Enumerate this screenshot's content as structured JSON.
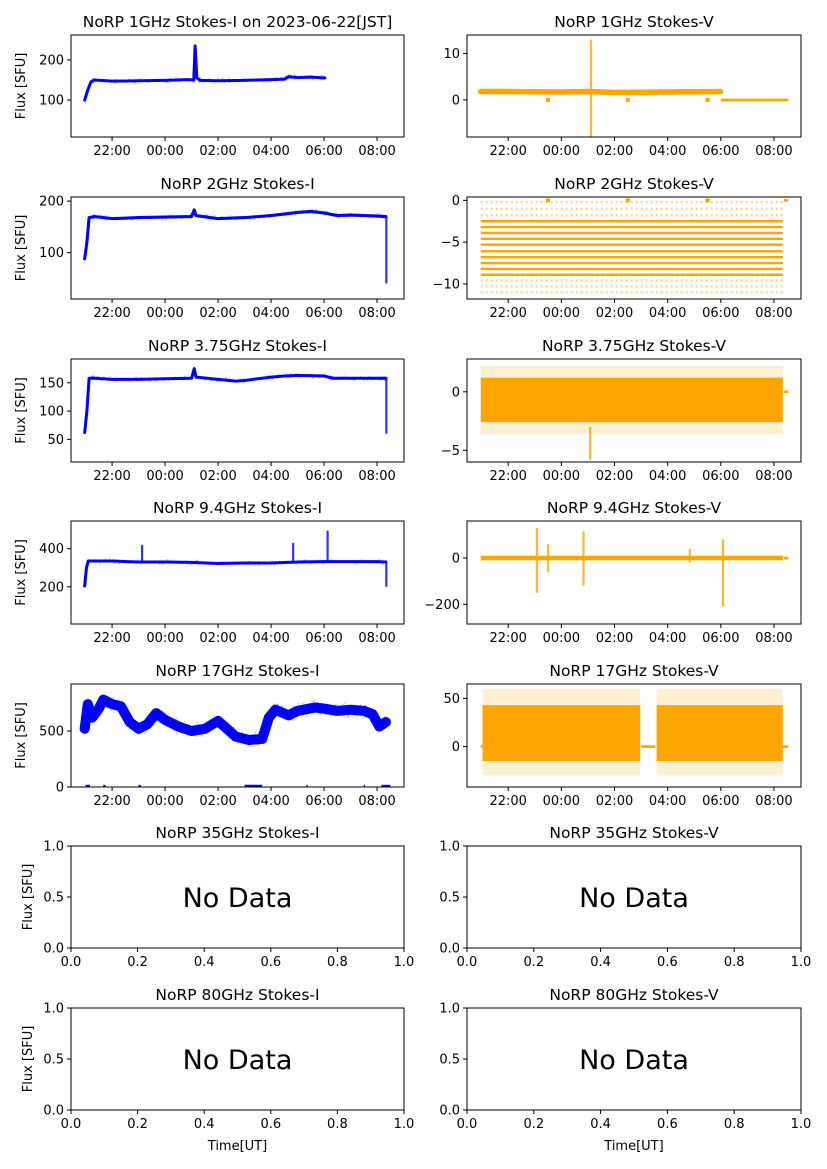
{
  "figure": {
    "ylabel": "Flux [SFU]",
    "xlabel": "Time[UT]",
    "colors": {
      "stokes_i": "#0000ff",
      "stokes_v": "#ffa500",
      "axis": "#000000"
    }
  },
  "chart_data": [
    {
      "id": "1ghz-i",
      "type": "scatter",
      "row": 0,
      "col": 0,
      "title": "NoRP 1GHz Stokes-I on 2023-06-22[JST]",
      "ylabel": "Flux [SFU]",
      "xlabel": "",
      "xlim": [
        "20:27",
        "09:01"
      ],
      "ylim": [
        8,
        262
      ],
      "xticks": [
        "22:00",
        "00:00",
        "02:00",
        "04:00",
        "06:00",
        "08:00"
      ],
      "yticks": [
        100,
        200
      ],
      "series": [
        {
          "name": "Stokes-I",
          "color": "#0000ff",
          "points": [
            [
              "20:58",
              100
            ],
            [
              "21:05",
              125
            ],
            [
              "21:12",
              145
            ],
            [
              "21:20",
              150
            ],
            [
              "22:00",
              147
            ],
            [
              "23:00",
              148
            ],
            [
              "00:00",
              149
            ],
            [
              "00:50",
              151
            ],
            [
              "01:05",
              150
            ],
            [
              "01:08",
              235
            ],
            [
              "01:12",
              155
            ],
            [
              "01:20",
              149
            ],
            [
              "02:00",
              148
            ],
            [
              "03:00",
              149
            ],
            [
              "04:00",
              151
            ],
            [
              "04:30",
              152
            ],
            [
              "04:40",
              158
            ],
            [
              "05:00",
              156
            ],
            [
              "05:30",
              157
            ],
            [
              "06:02",
              155
            ]
          ],
          "band": 4
        }
      ]
    },
    {
      "id": "1ghz-v",
      "type": "scatter",
      "row": 0,
      "col": 1,
      "title": "NoRP 1GHz Stokes-V",
      "ylabel": "",
      "xlabel": "",
      "xlim": [
        "20:27",
        "09:01"
      ],
      "ylim": [
        -8,
        14
      ],
      "xticks": [
        "22:00",
        "00:00",
        "02:00",
        "04:00",
        "06:00",
        "08:00"
      ],
      "yticks": [
        0,
        10
      ],
      "series": [
        {
          "name": "Stokes-V",
          "color": "#ffa500",
          "points": [
            [
              "20:58",
              1.8
            ],
            [
              "22:00",
              1.8
            ],
            [
              "00:00",
              1.7
            ],
            [
              "01:05",
              1.8
            ],
            [
              "02:00",
              1.6
            ],
            [
              "04:00",
              1.7
            ],
            [
              "05:59",
              1.8
            ]
          ],
          "band": 1.2,
          "spikes": [
            [
              "01:07",
              -8,
              13
            ]
          ],
          "flat": [
            [
              "06:00",
              "08:32",
              0
            ]
          ],
          "dots": [
            [
              "23:30",
              0
            ],
            [
              "02:30",
              0
            ],
            [
              "05:30",
              0
            ]
          ]
        }
      ]
    },
    {
      "id": "2ghz-i",
      "type": "scatter",
      "row": 1,
      "col": 0,
      "title": "NoRP 2GHz Stokes-I",
      "ylabel": "Flux [SFU]",
      "xlabel": "",
      "xlim": [
        "20:27",
        "09:01"
      ],
      "ylim": [
        10,
        208
      ],
      "xticks": [
        "22:00",
        "00:00",
        "02:00",
        "04:00",
        "06:00",
        "08:00"
      ],
      "yticks": [
        100,
        200
      ],
      "series": [
        {
          "name": "Stokes-I",
          "color": "#0000ff",
          "points": [
            [
              "20:58",
              88
            ],
            [
              "21:03",
              120
            ],
            [
              "21:08",
              168
            ],
            [
              "21:20",
              170
            ],
            [
              "22:00",
              166
            ],
            [
              "23:00",
              168
            ],
            [
              "00:00",
              169
            ],
            [
              "01:00",
              170
            ],
            [
              "01:06",
              183
            ],
            [
              "01:10",
              172
            ],
            [
              "02:00",
              166
            ],
            [
              "03:00",
              168
            ],
            [
              "04:00",
              172
            ],
            [
              "05:00",
              178
            ],
            [
              "05:30",
              180
            ],
            [
              "06:00",
              177
            ],
            [
              "06:30",
              172
            ],
            [
              "07:00",
              173
            ],
            [
              "08:00",
              171
            ],
            [
              "08:20",
              170
            ]
          ],
          "band": 6,
          "spikes": [
            [
              "08:21",
              40,
              170
            ]
          ]
        }
      ]
    },
    {
      "id": "2ghz-v",
      "type": "scatter",
      "row": 1,
      "col": 1,
      "title": "NoRP 2GHz Stokes-V",
      "ylabel": "",
      "xlabel": "",
      "xlim": [
        "20:27",
        "09:01"
      ],
      "ylim": [
        -11.8,
        0.4
      ],
      "xticks": [
        "22:00",
        "00:00",
        "02:00",
        "04:00",
        "06:00",
        "08:00"
      ],
      "yticks": [
        -10,
        -5,
        0
      ],
      "series": [
        {
          "name": "Stokes-V",
          "color": "#ffa500",
          "levels": [
            -0.2,
            -1.0,
            -1.8,
            -2.5,
            -3.2,
            -3.9,
            -4.6,
            -5.3,
            -6.1,
            -6.8,
            -7.5,
            -8.2,
            -8.9,
            -9.6,
            -10.3,
            -11.0
          ],
          "level_span": [
            "20:58",
            "08:20"
          ],
          "flat": [
            [
              "08:22",
              "08:32",
              0
            ]
          ],
          "dots": [
            [
              "23:30",
              0
            ],
            [
              "02:30",
              0
            ],
            [
              "05:30",
              0
            ]
          ]
        }
      ]
    },
    {
      "id": "375ghz-i",
      "type": "scatter",
      "row": 2,
      "col": 0,
      "title": "NoRP 3.75GHz Stokes-I",
      "ylabel": "Flux [SFU]",
      "xlabel": "",
      "xlim": [
        "20:27",
        "09:01"
      ],
      "ylim": [
        10,
        192
      ],
      "xticks": [
        "22:00",
        "00:00",
        "02:00",
        "04:00",
        "06:00",
        "08:00"
      ],
      "yticks": [
        50,
        100,
        150
      ],
      "series": [
        {
          "name": "Stokes-I",
          "color": "#0000ff",
          "points": [
            [
              "20:58",
              62
            ],
            [
              "21:03",
              100
            ],
            [
              "21:08",
              158
            ],
            [
              "21:20",
              158
            ],
            [
              "22:00",
              156
            ],
            [
              "23:00",
              156
            ],
            [
              "00:00",
              157
            ],
            [
              "01:00",
              158
            ],
            [
              "01:06",
              175
            ],
            [
              "01:10",
              160
            ],
            [
              "02:00",
              156
            ],
            [
              "02:40",
              153
            ],
            [
              "03:00",
              154
            ],
            [
              "04:00",
              160
            ],
            [
              "04:30",
              162
            ],
            [
              "05:00",
              163
            ],
            [
              "06:00",
              162
            ],
            [
              "06:20",
              158
            ],
            [
              "07:00",
              158
            ],
            [
              "08:00",
              158
            ],
            [
              "08:20",
              158
            ]
          ],
          "band": 5,
          "spikes": [
            [
              "08:21",
              60,
              160
            ]
          ]
        }
      ]
    },
    {
      "id": "375ghz-v",
      "type": "scatter",
      "row": 2,
      "col": 1,
      "title": "NoRP 3.75GHz Stokes-V",
      "ylabel": "",
      "xlabel": "",
      "xlim": [
        "20:27",
        "09:01"
      ],
      "ylim": [
        -6,
        2.8
      ],
      "xticks": [
        "22:00",
        "00:00",
        "02:00",
        "04:00",
        "06:00",
        "08:00"
      ],
      "yticks": [
        -5,
        0
      ],
      "series": [
        {
          "name": "Stokes-V",
          "color": "#ffa500",
          "block": [
            [
              "20:58",
              "08:20",
              -2.6,
              1.2
            ]
          ],
          "haze": [
            -3.6,
            2.2
          ],
          "spikes": [
            [
              "01:05",
              -5.8,
              -3
            ]
          ],
          "flat": [
            [
              "08:22",
              "08:32",
              0
            ]
          ]
        }
      ]
    },
    {
      "id": "94ghz-i",
      "type": "scatter",
      "row": 3,
      "col": 0,
      "title": "NoRP 9.4GHz Stokes-I",
      "ylabel": "Flux [SFU]",
      "xlabel": "",
      "xlim": [
        "20:27",
        "09:01"
      ],
      "ylim": [
        5,
        545
      ],
      "xticks": [
        "22:00",
        "00:00",
        "02:00",
        "04:00",
        "06:00",
        "08:00"
      ],
      "yticks": [
        200,
        400
      ],
      "series": [
        {
          "name": "Stokes-I",
          "color": "#0000ff",
          "points": [
            [
              "20:58",
              205
            ],
            [
              "21:02",
              300
            ],
            [
              "21:06",
              335
            ],
            [
              "22:00",
              335
            ],
            [
              "23:00",
              330
            ],
            [
              "00:00",
              330
            ],
            [
              "01:00",
              328
            ],
            [
              "02:00",
              322
            ],
            [
              "03:00",
              325
            ],
            [
              "04:00",
              325
            ],
            [
              "05:00",
              330
            ],
            [
              "06:00",
              332
            ],
            [
              "07:00",
              332
            ],
            [
              "08:00",
              332
            ],
            [
              "08:20",
              330
            ]
          ],
          "band": 14,
          "spikes": [
            [
              "23:08",
              330,
              420
            ],
            [
              "04:50",
              330,
              430
            ],
            [
              "06:08",
              330,
              495
            ],
            [
              "08:21",
              200,
              330
            ]
          ]
        }
      ]
    },
    {
      "id": "94ghz-v",
      "type": "scatter",
      "row": 3,
      "col": 1,
      "title": "NoRP 9.4GHz Stokes-V",
      "ylabel": "",
      "xlabel": "",
      "xlim": [
        "20:27",
        "09:01"
      ],
      "ylim": [
        -285,
        160
      ],
      "xticks": [
        "22:00",
        "00:00",
        "02:00",
        "04:00",
        "06:00",
        "08:00"
      ],
      "yticks": [
        -200,
        0
      ],
      "series": [
        {
          "name": "Stokes-V",
          "color": "#ffa500",
          "block": [
            [
              "20:58",
              "08:20",
              -10,
              10
            ]
          ],
          "spikes": [
            [
              "23:05",
              -150,
              130
            ],
            [
              "23:30",
              -60,
              60
            ],
            [
              "00:50",
              -120,
              115
            ],
            [
              "04:50",
              -20,
              40
            ],
            [
              "06:05",
              -210,
              80
            ]
          ],
          "flat": [
            [
              "08:22",
              "08:32",
              0
            ]
          ]
        }
      ]
    },
    {
      "id": "17ghz-i",
      "type": "scatter",
      "row": 4,
      "col": 0,
      "title": "NoRP 17GHz Stokes-I",
      "ylabel": "Flux [SFU]",
      "xlabel": "",
      "xlim": [
        "20:27",
        "09:01"
      ],
      "ylim": [
        0,
        920
      ],
      "xticks": [
        "22:00",
        "00:00",
        "02:00",
        "04:00",
        "06:00",
        "08:00"
      ],
      "yticks": [
        0,
        500
      ],
      "series": [
        {
          "name": "Stokes-I",
          "color": "#0000ff",
          "points": [
            [
              "20:58",
              520
            ],
            [
              "21:05",
              740
            ],
            [
              "21:15",
              620
            ],
            [
              "21:30",
              700
            ],
            [
              "21:40",
              780
            ],
            [
              "22:00",
              740
            ],
            [
              "22:20",
              720
            ],
            [
              "22:40",
              580
            ],
            [
              "23:00",
              520
            ],
            [
              "23:20",
              560
            ],
            [
              "23:40",
              660
            ],
            [
              "00:00",
              600
            ],
            [
              "00:30",
              540
            ],
            [
              "01:00",
              500
            ],
            [
              "01:30",
              520
            ],
            [
              "02:00",
              590
            ],
            [
              "02:20",
              520
            ],
            [
              "02:40",
              450
            ],
            [
              "03:10",
              420
            ],
            [
              "03:40",
              430
            ],
            [
              "03:55",
              620
            ],
            [
              "04:10",
              690
            ],
            [
              "04:40",
              640
            ],
            [
              "05:00",
              680
            ],
            [
              "05:40",
              710
            ],
            [
              "06:00",
              700
            ],
            [
              "06:30",
              680
            ],
            [
              "07:00",
              690
            ],
            [
              "07:30",
              680
            ],
            [
              "07:50",
              650
            ],
            [
              "08:05",
              540
            ],
            [
              "08:20",
              580
            ]
          ],
          "band": 90,
          "baseline_marks": 0
        }
      ]
    },
    {
      "id": "17ghz-v",
      "type": "scatter",
      "row": 4,
      "col": 1,
      "title": "NoRP 17GHz Stokes-V",
      "ylabel": "",
      "xlabel": "",
      "xlim": [
        "20:27",
        "09:01"
      ],
      "ylim": [
        -42,
        65
      ],
      "xticks": [
        "22:00",
        "00:00",
        "02:00",
        "04:00",
        "06:00",
        "08:00"
      ],
      "yticks": [
        0,
        50
      ],
      "series": [
        {
          "name": "Stokes-V",
          "color": "#ffa500",
          "block": [
            [
              "21:02",
              "02:58",
              -15,
              43
            ],
            [
              "03:35",
              "08:20",
              -15,
              43
            ]
          ],
          "haze": [
            -30,
            60
          ],
          "flat": [
            [
              "20:58",
              "21:02",
              0
            ],
            [
              "03:00",
              "03:32",
              0
            ],
            [
              "08:20",
              "08:32",
              0
            ]
          ]
        }
      ]
    },
    {
      "id": "35ghz-i",
      "type": "empty",
      "row": 5,
      "col": 0,
      "title": "NoRP 35GHz Stokes-I",
      "ylabel": "Flux [SFU]",
      "xlabel": "",
      "xlim": [
        0,
        1
      ],
      "ylim": [
        0,
        1
      ],
      "xticks": [
        "0.0",
        "0.2",
        "0.4",
        "0.6",
        "0.8",
        "1.0"
      ],
      "yticks": [
        "0.0",
        "0.5",
        "1.0"
      ],
      "annotation": "No Data"
    },
    {
      "id": "35ghz-v",
      "type": "empty",
      "row": 5,
      "col": 1,
      "title": "NoRP 35GHz Stokes-V",
      "ylabel": "",
      "xlabel": "",
      "xlim": [
        0,
        1
      ],
      "ylim": [
        0,
        1
      ],
      "xticks": [
        "0.0",
        "0.2",
        "0.4",
        "0.6",
        "0.8",
        "1.0"
      ],
      "yticks": [
        "0.0",
        "0.5",
        "1.0"
      ],
      "annotation": "No Data"
    },
    {
      "id": "80ghz-i",
      "type": "empty",
      "row": 6,
      "col": 0,
      "title": "NoRP 80GHz Stokes-I",
      "ylabel": "Flux [SFU]",
      "xlabel": "Time[UT]",
      "xlim": [
        0,
        1
      ],
      "ylim": [
        0,
        1
      ],
      "xticks": [
        "0.0",
        "0.2",
        "0.4",
        "0.6",
        "0.8",
        "1.0"
      ],
      "yticks": [
        "0.0",
        "0.5",
        "1.0"
      ],
      "annotation": "No Data"
    },
    {
      "id": "80ghz-v",
      "type": "empty",
      "row": 6,
      "col": 1,
      "title": "NoRP 80GHz Stokes-V",
      "ylabel": "",
      "xlabel": "Time[UT]",
      "xlim": [
        0,
        1
      ],
      "ylim": [
        0,
        1
      ],
      "xticks": [
        "0.0",
        "0.2",
        "0.4",
        "0.6",
        "0.8",
        "1.0"
      ],
      "yticks": [
        "0.0",
        "0.5",
        "1.0"
      ],
      "annotation": "No Data"
    }
  ]
}
